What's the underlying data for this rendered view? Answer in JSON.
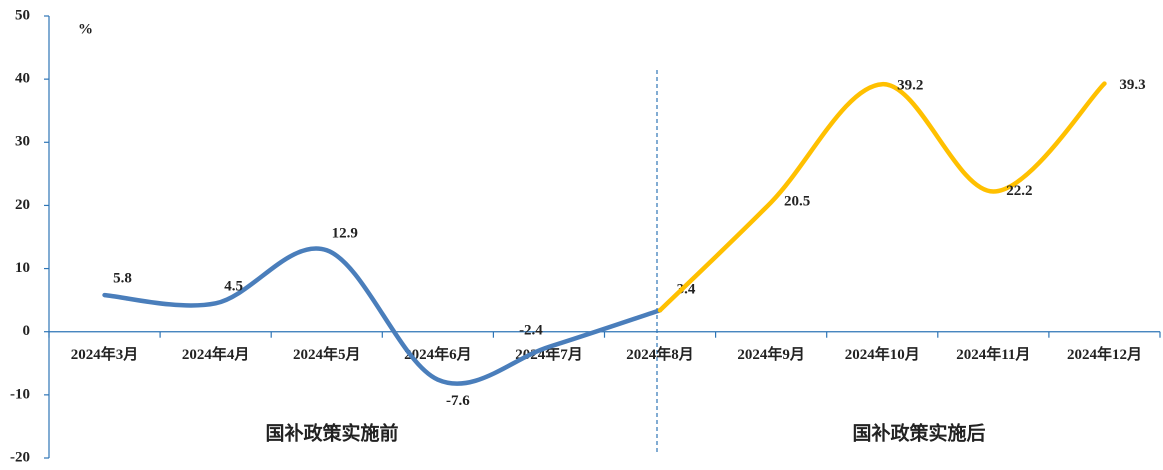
{
  "chart_data": {
    "type": "line",
    "unit": "%",
    "categories": [
      "2024年3月",
      "2024年4月",
      "2024年5月",
      "2024年6月",
      "2024年7月",
      "2024年8月",
      "2024年9月",
      "2024年10月",
      "2024年11月",
      "2024年12月"
    ],
    "series": [
      {
        "color": "#4a7ebb",
        "values": [
          5.8,
          4.5,
          12.9,
          -7.6,
          -2.4,
          3.4,
          null,
          null,
          null,
          null
        ]
      },
      {
        "color": "#ffc000",
        "values": [
          null,
          null,
          null,
          null,
          null,
          3.4,
          20.5,
          39.2,
          22.2,
          39.3
        ]
      }
    ],
    "annotations": [
      "国补政策实施前",
      "国补政策实施后"
    ],
    "ylim": [
      -20,
      50
    ],
    "yticks": [
      -20,
      -10,
      0,
      10,
      20,
      30,
      40,
      50
    ]
  }
}
